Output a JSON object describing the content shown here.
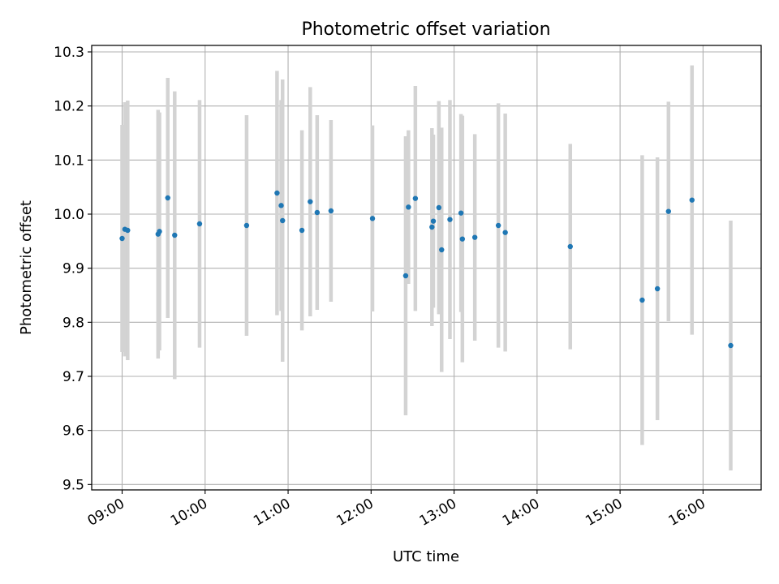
{
  "chart_data": {
    "type": "scatter",
    "title": "Photometric offset variation",
    "xlabel": "UTC time",
    "ylabel": "Photometric offset",
    "xlim": [
      "08:38",
      "16:42"
    ],
    "ylim": [
      9.49,
      10.312
    ],
    "grid": true,
    "x_ticks": [
      "09:00",
      "10:00",
      "11:00",
      "12:00",
      "13:00",
      "14:00",
      "15:00",
      "16:00"
    ],
    "y_ticks": [
      "9.5",
      "9.6",
      "9.7",
      "9.8",
      "9.9",
      "10.0",
      "10.1",
      "10.2",
      "10.3"
    ],
    "colors": {
      "point": "#1f77b4",
      "errorbar": "#d3d3d3",
      "grid": "#b0b0b0"
    },
    "points": [
      {
        "x": "09:00",
        "y": 9.955,
        "yerr": 0.21
      },
      {
        "x": "09:02",
        "y": 9.972,
        "yerr": 0.235
      },
      {
        "x": "09:04",
        "y": 9.97,
        "yerr": 0.24
      },
      {
        "x": "09:26",
        "y": 9.963,
        "yerr": 0.23
      },
      {
        "x": "09:27",
        "y": 9.968,
        "yerr": 0.22
      },
      {
        "x": "09:33",
        "y": 10.03,
        "yerr": 0.222
      },
      {
        "x": "09:38",
        "y": 9.961,
        "yerr": 0.266
      },
      {
        "x": "09:56",
        "y": 9.982,
        "yerr": 0.229
      },
      {
        "x": "10:30",
        "y": 9.979,
        "yerr": 0.204
      },
      {
        "x": "10:52",
        "y": 10.039,
        "yerr": 0.226
      },
      {
        "x": "10:55",
        "y": 10.016,
        "yerr": 0.195
      },
      {
        "x": "10:56",
        "y": 9.988,
        "yerr": 0.261
      },
      {
        "x": "11:10",
        "y": 9.97,
        "yerr": 0.185
      },
      {
        "x": "11:16",
        "y": 10.023,
        "yerr": 0.212
      },
      {
        "x": "11:21",
        "y": 10.003,
        "yerr": 0.18
      },
      {
        "x": "11:31",
        "y": 10.006,
        "yerr": 0.168
      },
      {
        "x": "12:01",
        "y": 9.992,
        "yerr": 0.172
      },
      {
        "x": "12:25",
        "y": 9.886,
        "yerr": 0.258
      },
      {
        "x": "12:27",
        "y": 10.013,
        "yerr": 0.142
      },
      {
        "x": "12:32",
        "y": 10.029,
        "yerr": 0.208
      },
      {
        "x": "12:44",
        "y": 9.976,
        "yerr": 0.183
      },
      {
        "x": "12:45",
        "y": 9.987,
        "yerr": 0.16
      },
      {
        "x": "12:49",
        "y": 10.012,
        "yerr": 0.197
      },
      {
        "x": "12:51",
        "y": 9.934,
        "yerr": 0.226
      },
      {
        "x": "12:57",
        "y": 9.99,
        "yerr": 0.221
      },
      {
        "x": "13:05",
        "y": 10.002,
        "yerr": 0.183
      },
      {
        "x": "13:06",
        "y": 9.954,
        "yerr": 0.228
      },
      {
        "x": "13:15",
        "y": 9.957,
        "yerr": 0.191
      },
      {
        "x": "13:32",
        "y": 9.979,
        "yerr": 0.226
      },
      {
        "x": "13:37",
        "y": 9.966,
        "yerr": 0.22
      },
      {
        "x": "14:24",
        "y": 9.94,
        "yerr": 0.19
      },
      {
        "x": "15:16",
        "y": 9.841,
        "yerr": 0.268
      },
      {
        "x": "15:27",
        "y": 9.862,
        "yerr": 0.243
      },
      {
        "x": "15:35",
        "y": 10.005,
        "yerr": 0.203
      },
      {
        "x": "15:52",
        "y": 10.026,
        "yerr": 0.249
      },
      {
        "x": "16:20",
        "y": 9.757,
        "yerr": 0.231
      }
    ]
  }
}
